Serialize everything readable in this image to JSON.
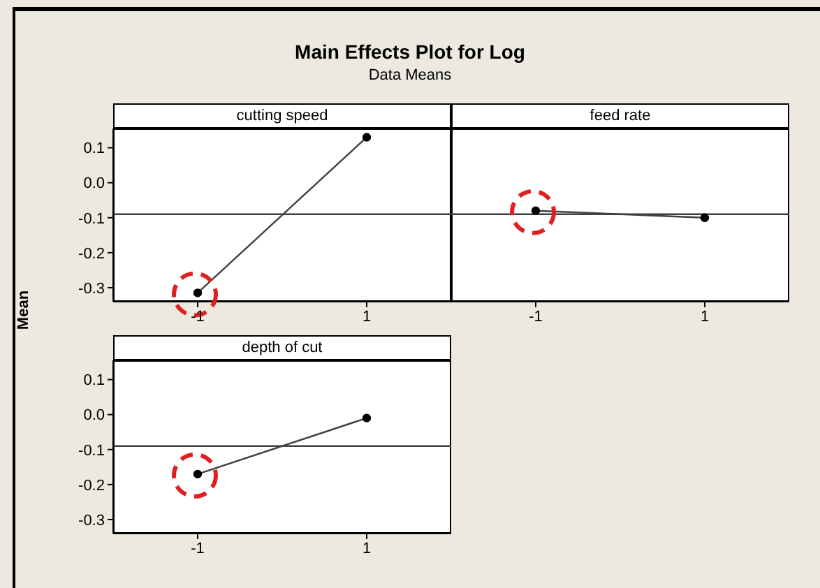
{
  "chart_data": [
    {
      "type": "line",
      "title": "Main Effects Plot for Log",
      "subtitle": "Data Means",
      "ylabel": "Mean",
      "xlabel": "cutting speed",
      "categories": [
        "-1",
        "1"
      ],
      "values": [
        -0.315,
        0.13
      ],
      "color": "#404040",
      "marker": "circle",
      "line_style": "solid",
      "ylim": [
        -0.34,
        0.155
      ],
      "yticks": [
        -0.3,
        -0.2,
        -0.1,
        {
          "value": 0,
          "label": "0.0"
        },
        0.1
      ],
      "ref_lines": [
        {
          "axis": "y",
          "value": -0.09,
          "color": "#404040"
        }
      ]
    },
    {
      "type": "line",
      "xlabel": "feed rate",
      "categories": [
        "-1",
        "1"
      ],
      "values": [
        -0.08,
        -0.1
      ],
      "color": "#404040",
      "marker": "circle",
      "line_style": "solid",
      "ylim": [
        -0.34,
        0.155
      ],
      "tick_labels": "x",
      "ref_lines": [
        {
          "axis": "y",
          "value": -0.09,
          "color": "#404040"
        }
      ]
    },
    {
      "type": "line",
      "xlabel": "depth of cut",
      "categories": [
        "-1",
        "1"
      ],
      "values": [
        -0.17,
        -0.01
      ],
      "color": "#404040",
      "marker": "circle",
      "line_style": "solid",
      "ylim": [
        -0.34,
        0.155
      ],
      "yticks": [
        -0.3,
        -0.2,
        -0.1,
        {
          "value": 0,
          "label": "0.0"
        },
        0.1
      ],
      "ref_lines": [
        {
          "axis": "y",
          "value": -0.09,
          "color": "#404040"
        }
      ]
    }
  ]
}
